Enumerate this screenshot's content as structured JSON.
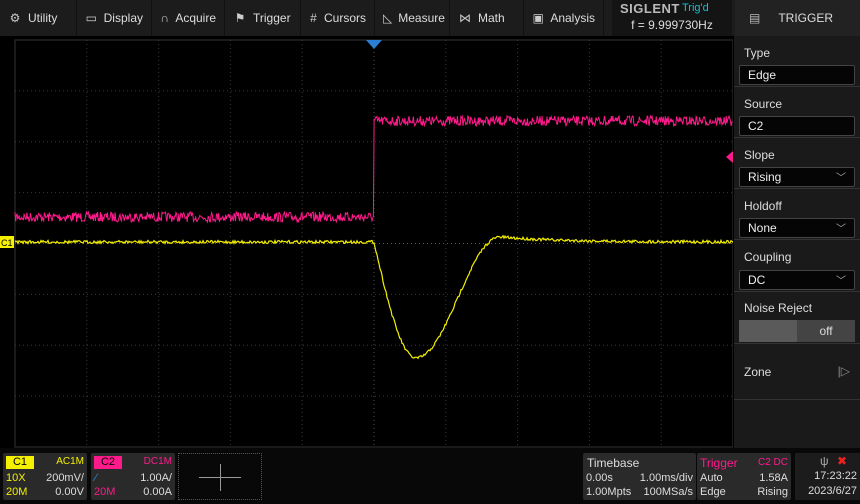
{
  "menu": [
    {
      "label": "Utility",
      "icon": "gear-icon",
      "glyph": "⚙"
    },
    {
      "label": "Display",
      "icon": "monitor-icon",
      "glyph": "▭"
    },
    {
      "label": "Acquire",
      "icon": "acquire-icon",
      "glyph": "∩"
    },
    {
      "label": "Trigger",
      "icon": "flag-icon",
      "glyph": "⚑"
    },
    {
      "label": "Cursors",
      "icon": "cursors-icon",
      "glyph": "#"
    },
    {
      "label": "Measure",
      "icon": "ruler-icon",
      "glyph": "◺"
    },
    {
      "label": "Math",
      "icon": "math-icon",
      "glyph": "⋈"
    },
    {
      "label": "Analysis",
      "icon": "analysis-icon",
      "glyph": "▣"
    }
  ],
  "brand": {
    "logo": "SIGLENT",
    "status": "Trig'd",
    "frequency": "f = 9.999730Hz"
  },
  "panel": {
    "title": "TRIGGER",
    "type": {
      "label": "Type",
      "value": "Edge"
    },
    "source": {
      "label": "Source",
      "value": "C2"
    },
    "slope": {
      "label": "Slope",
      "value": "Rising"
    },
    "holdoff": {
      "label": "Holdoff",
      "value": "None"
    },
    "coupling": {
      "label": "Coupling",
      "value": "DC"
    },
    "noise_reject": {
      "label": "Noise Reject",
      "value": "off"
    },
    "zone": {
      "label": "Zone"
    }
  },
  "c1": {
    "name": "C1",
    "coupling": "AC1M",
    "probe": "10X",
    "scale": "200mV/",
    "bw": "20M",
    "offset": "0.00V",
    "color": "#f5f000"
  },
  "c2": {
    "name": "C2",
    "coupling": "DC1M",
    "scale": "1.00A/",
    "bw": "20M",
    "offset": "0.00A",
    "color": "#ff1a8c"
  },
  "timebase": {
    "title": "Timebase",
    "delay": "0.00s",
    "scale": "1.00ms/div",
    "depth": "1.00Mpts",
    "rate": "100MSa/s"
  },
  "trigger": {
    "title": "Trigger",
    "source": "C2 DC",
    "mode": "Auto",
    "level": "1.58A",
    "type": "Edge",
    "slope": "Rising"
  },
  "clock": {
    "time": "17:23:22",
    "date": "2023/6/27"
  },
  "plot": {
    "c1_marker": "C1"
  }
}
